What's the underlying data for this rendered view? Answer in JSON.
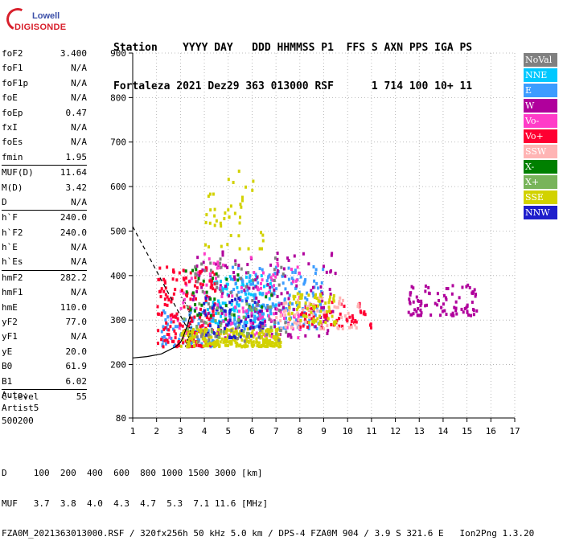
{
  "logo": {
    "line1": "Lowell",
    "line2": "DIGISONDE"
  },
  "header": {
    "labels": "Station    YYYY DAY   DDD HHMMSS P1  FFS S AXN PPS IGA PS",
    "values": "Fortaleza 2021 Dez29 363 013000 RSF      1 714 100 10+ 11"
  },
  "params": {
    "group1": [
      {
        "k": "foF2",
        "v": "3.400"
      },
      {
        "k": "foF1",
        "v": "N/A"
      },
      {
        "k": "foF1p",
        "v": "N/A"
      },
      {
        "k": "foE",
        "v": "N/A"
      },
      {
        "k": "foEp",
        "v": "0.47"
      },
      {
        "k": "fxI",
        "v": "N/A"
      },
      {
        "k": "foEs",
        "v": "N/A"
      },
      {
        "k": "fmin",
        "v": "1.95"
      }
    ],
    "group2": [
      {
        "k": "MUF(D)",
        "v": "11.64"
      },
      {
        "k": "M(D)",
        "v": "3.42"
      },
      {
        "k": "D",
        "v": "N/A"
      }
    ],
    "group3": [
      {
        "k": "h`F",
        "v": "240.0"
      },
      {
        "k": "h`F2",
        "v": "240.0"
      },
      {
        "k": "h`E",
        "v": "N/A"
      },
      {
        "k": "h`Es",
        "v": "N/A"
      }
    ],
    "group4": [
      {
        "k": "hmF2",
        "v": "282.2"
      },
      {
        "k": "hmF1",
        "v": "N/A"
      },
      {
        "k": "hmE",
        "v": "110.0"
      },
      {
        "k": "yF2",
        "v": "77.0"
      },
      {
        "k": "yF1",
        "v": "N/A"
      },
      {
        "k": "yE",
        "v": "20.0"
      },
      {
        "k": "B0",
        "v": "61.9"
      },
      {
        "k": "B1",
        "v": "6.02"
      }
    ],
    "group5": [
      {
        "k": "C-level",
        "v": "55"
      }
    ]
  },
  "auto": {
    "line1": "Auto:",
    "line2": "Artist5",
    "line3": "500200"
  },
  "legend": [
    {
      "label": "NoVal",
      "color": "#808080"
    },
    {
      "label": "NNE",
      "color": "#00c8ff"
    },
    {
      "label": "E",
      "color": "#3c9cff"
    },
    {
      "label": "W",
      "color": "#b0009c"
    },
    {
      "label": "Vo-",
      "color": "#ff3cc8"
    },
    {
      "label": "Vo+",
      "color": "#ff0032"
    },
    {
      "label": "SSW",
      "color": "#ffb4b4"
    },
    {
      "label": "X-",
      "color": "#008000"
    },
    {
      "label": "X+",
      "color": "#78b45a"
    },
    {
      "label": "SSE",
      "color": "#d2d200"
    },
    {
      "label": "NNW",
      "color": "#1e1ecc"
    }
  ],
  "footer": {
    "line1": "D     100  200  400  600  800 1000 1500 3000 [km]",
    "line2": "MUF   3.7  3.8  4.0  4.3  4.7  5.3  7.1 11.6 [MHz]",
    "line3": "FZA0M_2021363013000.RSF / 320fx256h 50 kHz 5.0 km / DPS-4 FZA0M 904 / 3.9 S 321.6 E   Ion2Png 1.3.20"
  },
  "chart_data": {
    "type": "scatter",
    "xlim": [
      1,
      17
    ],
    "ylim": [
      80,
      900
    ],
    "xticks": [
      1,
      2,
      3,
      4,
      5,
      6,
      7,
      8,
      9,
      10,
      11,
      12,
      13,
      14,
      15,
      16,
      17
    ],
    "yticks": [
      80,
      200,
      300,
      400,
      500,
      600,
      700,
      800,
      900
    ],
    "grid": true,
    "legend_position": "right",
    "clusters": [
      {
        "series": "NNE",
        "x": [
          4.0,
          7.0
        ],
        "y": [
          290,
          400
        ],
        "n": 140
      },
      {
        "series": "E",
        "x": [
          5.0,
          9.0
        ],
        "y": [
          280,
          420
        ],
        "n": 180
      },
      {
        "series": "E",
        "x": [
          2.2,
          4.5
        ],
        "y": [
          240,
          330
        ],
        "n": 80
      },
      {
        "series": "W",
        "x": [
          3.5,
          9.5
        ],
        "y": [
          260,
          460
        ],
        "n": 160
      },
      {
        "series": "W",
        "x": [
          12.5,
          15.5
        ],
        "y": [
          310,
          380
        ],
        "n": 90
      },
      {
        "series": "Vo-",
        "x": [
          2.5,
          8.0
        ],
        "y": [
          260,
          450
        ],
        "n": 120
      },
      {
        "series": "Vo+",
        "x": [
          2.0,
          4.5
        ],
        "y": [
          240,
          420
        ],
        "n": 170
      },
      {
        "series": "Vo+",
        "x": [
          8.0,
          11.0
        ],
        "y": [
          280,
          340
        ],
        "n": 60
      },
      {
        "series": "SSW",
        "x": [
          7.0,
          10.5
        ],
        "y": [
          280,
          350
        ],
        "n": 70
      },
      {
        "series": "SSE",
        "x": [
          3.0,
          7.2
        ],
        "y": [
          240,
          280
        ],
        "n": 260
      },
      {
        "series": "SSE",
        "x": [
          7.5,
          9.5
        ],
        "y": [
          290,
          360
        ],
        "n": 70
      },
      {
        "series": "SSE",
        "x": [
          4.0,
          6.5
        ],
        "y": [
          460,
          640
        ],
        "n": 45
      },
      {
        "series": "NNW",
        "x": [
          3.5,
          6.5
        ],
        "y": [
          260,
          350
        ],
        "n": 55
      },
      {
        "series": "NoVal",
        "x": [
          3.5,
          7.5
        ],
        "y": [
          250,
          440
        ],
        "n": 70
      },
      {
        "series": "X-",
        "x": [
          3.0,
          7.0
        ],
        "y": [
          300,
          420
        ],
        "n": 30
      },
      {
        "series": "X+",
        "x": [
          3.0,
          7.0
        ],
        "y": [
          260,
          340
        ],
        "n": 30
      }
    ],
    "profile_solid": {
      "x": [
        1.0,
        1.6,
        2.2,
        2.5,
        2.8,
        3.0,
        3.1,
        3.2,
        3.3,
        3.4
      ],
      "y": [
        215,
        218,
        224,
        232,
        240,
        250,
        260,
        275,
        290,
        310
      ]
    },
    "profile_dashed": {
      "x": [
        1.0,
        1.4,
        1.8,
        2.2,
        2.6,
        3.0,
        3.2,
        3.4
      ],
      "y": [
        510,
        470,
        430,
        390,
        350,
        310,
        290,
        282
      ]
    },
    "profile_dotted": {
      "x": [
        3.2,
        3.3,
        3.4,
        3.45,
        3.4,
        3.3,
        3.0
      ],
      "y": [
        240,
        255,
        270,
        285,
        310,
        330,
        355
      ]
    }
  }
}
